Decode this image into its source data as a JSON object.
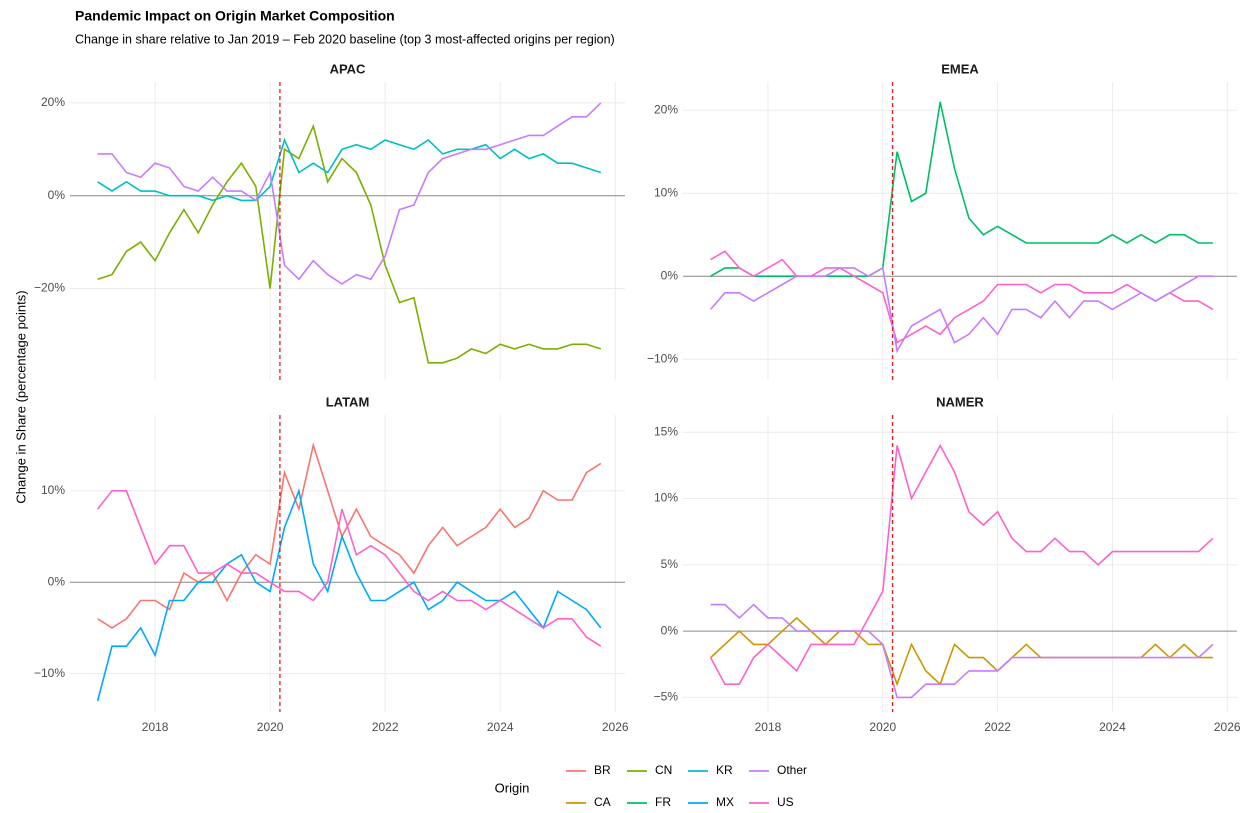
{
  "title": "Pandemic Impact on Origin Market Composition",
  "subtitle": "Change in share relative to Jan 2019 – Feb 2020 baseline (top 3 most-affected origins per region)",
  "y_label": "Change in Share (percentage points)",
  "legend": {
    "title": "Origin"
  },
  "chart_data": [
    {
      "type": "line",
      "title": "APAC",
      "xlim": [
        2016.52,
        2026.17
      ],
      "ylim": [
        -39.7,
        24.5
      ],
      "xticks": [
        2018,
        2020,
        2022,
        2024,
        2026
      ],
      "yticks": [
        {
          "value": -20,
          "label": "−20%"
        },
        {
          "value": 0,
          "label": "0%"
        },
        {
          "value": 20,
          "label": "20%"
        }
      ],
      "grid": true,
      "hline": 0,
      "reference_line": 2020.17,
      "x": [
        2017,
        2017.25,
        2017.5,
        2017.75,
        2018,
        2018.25,
        2018.5,
        2018.75,
        2019,
        2019.25,
        2019.5,
        2019.75,
        2020,
        2020.25,
        2020.5,
        2020.75,
        2021,
        2021.25,
        2021.5,
        2021.75,
        2022,
        2022.25,
        2022.5,
        2022.75,
        2023,
        2023.25,
        2023.5,
        2023.75,
        2024,
        2024.25,
        2024.5,
        2024.75,
        2025,
        2025.25,
        2025.5,
        2025.75
      ],
      "series": [
        {
          "name": "CN",
          "color": "#7CAE00",
          "values": [
            -18,
            -17,
            -12,
            -10,
            -14,
            -8,
            -3,
            -8,
            -2,
            3,
            7,
            2,
            -20,
            10,
            8,
            15,
            3,
            8,
            5,
            -2,
            -15,
            -23,
            -22,
            -36,
            -36,
            -35,
            -33,
            -34,
            -32,
            -33,
            -32,
            -33,
            -33,
            -32,
            -32,
            -33
          ]
        },
        {
          "name": "KR",
          "color": "#00BFC4",
          "values": [
            3,
            1,
            3,
            1,
            1,
            0,
            0,
            0,
            -1,
            0,
            -1,
            -1,
            2,
            12,
            5,
            7,
            5,
            10,
            11,
            10,
            12,
            11,
            10,
            12,
            9,
            10,
            10,
            11,
            8,
            10,
            8,
            9,
            7,
            7,
            6,
            5
          ]
        },
        {
          "name": "Other",
          "color": "#C77CFF",
          "values": [
            9,
            9,
            5,
            4,
            7,
            6,
            2,
            1,
            4,
            1,
            1,
            -1,
            5,
            -15,
            -18,
            -14,
            -17,
            -19,
            -17,
            -18,
            -13,
            -3,
            -2,
            5,
            8,
            9,
            10,
            10,
            11,
            12,
            13,
            13,
            15,
            17,
            17,
            20
          ]
        }
      ]
    },
    {
      "type": "line",
      "title": "EMEA",
      "xlim": [
        2016.52,
        2026.17
      ],
      "ylim": [
        -12.5,
        23.4
      ],
      "xticks": [
        2018,
        2020,
        2022,
        2024,
        2026
      ],
      "yticks": [
        {
          "value": -10,
          "label": "−10%"
        },
        {
          "value": 0,
          "label": "0%"
        },
        {
          "value": 10,
          "label": "10%"
        },
        {
          "value": 20,
          "label": "20%"
        }
      ],
      "grid": true,
      "hline": 0,
      "reference_line": 2020.17,
      "x": [
        2017,
        2017.25,
        2017.5,
        2017.75,
        2018,
        2018.25,
        2018.5,
        2018.75,
        2019,
        2019.25,
        2019.5,
        2019.75,
        2020,
        2020.25,
        2020.5,
        2020.75,
        2021,
        2021.25,
        2021.5,
        2021.75,
        2022,
        2022.25,
        2022.5,
        2022.75,
        2023,
        2023.25,
        2023.5,
        2023.75,
        2024,
        2024.25,
        2024.5,
        2024.75,
        2025,
        2025.25,
        2025.5,
        2025.75
      ],
      "series": [
        {
          "name": "FR",
          "color": "#00BE67",
          "values": [
            0,
            1,
            1,
            0,
            0,
            0,
            0,
            0,
            0,
            0,
            0,
            0,
            1,
            15,
            9,
            10,
            21,
            13,
            7,
            5,
            6,
            5,
            4,
            4,
            4,
            4,
            4,
            4,
            5,
            4,
            5,
            4,
            5,
            5,
            4,
            4
          ]
        },
        {
          "name": "US",
          "color": "#FF61CC",
          "values": [
            2,
            3,
            1,
            0,
            1,
            2,
            0,
            0,
            1,
            1,
            0,
            -1,
            -2,
            -8,
            -7,
            -6,
            -7,
            -5,
            -4,
            -3,
            -1,
            -1,
            -1,
            -2,
            -1,
            -1,
            -2,
            -2,
            -2,
            -1,
            -2,
            -3,
            -2,
            -3,
            -3,
            -4
          ]
        },
        {
          "name": "Other",
          "color": "#C77CFF",
          "values": [
            -4,
            -2,
            -2,
            -3,
            -2,
            -1,
            0,
            0,
            0,
            1,
            1,
            0,
            1,
            -9,
            -6,
            -5,
            -4,
            -8,
            -7,
            -5,
            -7,
            -4,
            -4,
            -5,
            -3,
            -5,
            -3,
            -3,
            -4,
            -3,
            -2,
            -3,
            -2,
            -1,
            0,
            0
          ]
        }
      ]
    },
    {
      "type": "line",
      "title": "LATAM",
      "xlim": [
        2016.52,
        2026.17
      ],
      "ylim": [
        -14.2,
        18.3
      ],
      "xticks": [
        2018,
        2020,
        2022,
        2024,
        2026
      ],
      "yticks": [
        {
          "value": -10,
          "label": "−10%"
        },
        {
          "value": 0,
          "label": "0%"
        },
        {
          "value": 10,
          "label": "10%"
        }
      ],
      "grid": true,
      "hline": 0,
      "reference_line": 2020.17,
      "x": [
        2017,
        2017.25,
        2017.5,
        2017.75,
        2018,
        2018.25,
        2018.5,
        2018.75,
        2019,
        2019.25,
        2019.5,
        2019.75,
        2020,
        2020.25,
        2020.5,
        2020.75,
        2021,
        2021.25,
        2021.5,
        2021.75,
        2022,
        2022.25,
        2022.5,
        2022.75,
        2023,
        2023.25,
        2023.5,
        2023.75,
        2024,
        2024.25,
        2024.5,
        2024.75,
        2025,
        2025.25,
        2025.5,
        2025.75
      ],
      "series": [
        {
          "name": "BR",
          "color": "#F8766D",
          "values": [
            -4,
            -5,
            -4,
            -2,
            -2,
            -3,
            1,
            0,
            1,
            -2,
            1,
            3,
            2,
            12,
            8,
            15,
            10,
            5,
            8,
            5,
            4,
            3,
            1,
            4,
            6,
            4,
            5,
            6,
            8,
            6,
            7,
            10,
            9,
            9,
            12,
            13
          ]
        },
        {
          "name": "MX",
          "color": "#00A9FF",
          "values": [
            -13,
            -7,
            -7,
            -5,
            -8,
            -2,
            -2,
            0,
            0,
            2,
            3,
            0,
            -1,
            6,
            10,
            2,
            -1,
            5,
            1,
            -2,
            -2,
            -1,
            0,
            -3,
            -2,
            0,
            -1,
            -2,
            -2,
            -1,
            -3,
            -5,
            -1,
            -2,
            -3,
            -5
          ]
        },
        {
          "name": "US",
          "color": "#FF61CC",
          "values": [
            8,
            10,
            10,
            6,
            2,
            4,
            4,
            1,
            1,
            2,
            1,
            1,
            0,
            -1,
            -1,
            -2,
            0,
            8,
            3,
            4,
            3,
            1,
            -1,
            -2,
            -1,
            -2,
            -2,
            -3,
            -2,
            -3,
            -4,
            -5,
            -4,
            -4,
            -6,
            -7
          ]
        }
      ]
    },
    {
      "type": "line",
      "title": "NAMER",
      "xlim": [
        2016.52,
        2026.17
      ],
      "ylim": [
        -6.1,
        16.3
      ],
      "xticks": [
        2018,
        2020,
        2022,
        2024,
        2026
      ],
      "yticks": [
        {
          "value": -5,
          "label": "−5%"
        },
        {
          "value": 0,
          "label": "0%"
        },
        {
          "value": 5,
          "label": "5%"
        },
        {
          "value": 10,
          "label": "10%"
        },
        {
          "value": 15,
          "label": "15%"
        }
      ],
      "grid": true,
      "hline": 0,
      "reference_line": 2020.17,
      "x": [
        2017,
        2017.25,
        2017.5,
        2017.75,
        2018,
        2018.25,
        2018.5,
        2018.75,
        2019,
        2019.25,
        2019.5,
        2019.75,
        2020,
        2020.25,
        2020.5,
        2020.75,
        2021,
        2021.25,
        2021.5,
        2021.75,
        2022,
        2022.25,
        2022.5,
        2022.75,
        2023,
        2023.25,
        2023.5,
        2023.75,
        2024,
        2024.25,
        2024.5,
        2024.75,
        2025,
        2025.25,
        2025.5,
        2025.75
      ],
      "series": [
        {
          "name": "CA",
          "color": "#CD9600",
          "values": [
            -2,
            -1,
            0,
            -1,
            -1,
            0,
            1,
            0,
            -1,
            0,
            0,
            -1,
            -1,
            -4,
            -1,
            -3,
            -4,
            -1,
            -2,
            -2,
            -3,
            -2,
            -1,
            -2,
            -2,
            -2,
            -2,
            -2,
            -2,
            -2,
            -2,
            -1,
            -2,
            -1,
            -2,
            -2
          ]
        },
        {
          "name": "US",
          "color": "#FF61CC",
          "values": [
            -2,
            -4,
            -4,
            -2,
            -1,
            -2,
            -3,
            -1,
            -1,
            -1,
            -1,
            1,
            3,
            14,
            10,
            12,
            14,
            12,
            9,
            8,
            9,
            7,
            6,
            6,
            7,
            6,
            6,
            5,
            6,
            6,
            6,
            6,
            6,
            6,
            6,
            7
          ]
        },
        {
          "name": "Other",
          "color": "#C77CFF",
          "values": [
            2,
            2,
            1,
            2,
            1,
            1,
            0,
            0,
            0,
            0,
            0,
            0,
            -1,
            -5,
            -5,
            -4,
            -4,
            -4,
            -3,
            -3,
            -3,
            -2,
            -2,
            -2,
            -2,
            -2,
            -2,
            -2,
            -2,
            -2,
            -2,
            -2,
            -2,
            -2,
            -2,
            -1
          ]
        }
      ]
    }
  ]
}
